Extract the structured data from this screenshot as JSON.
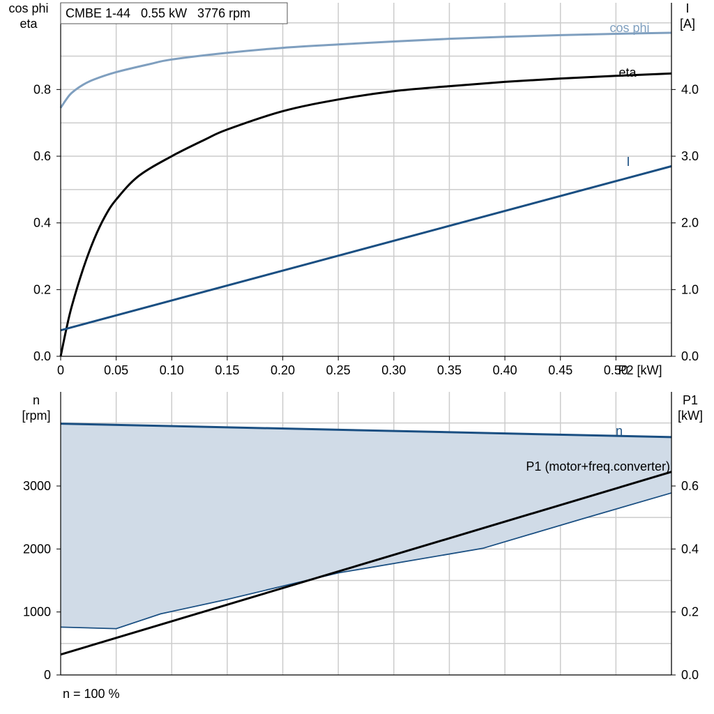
{
  "chart_data": [
    {
      "type": "line",
      "title": "CMBE 1-44   0.55 kW   3776 rpm",
      "xlabel": "P2 [kW]",
      "ylabel_left": [
        "cos phi",
        "eta"
      ],
      "ylabel_right": [
        "I",
        "[A]"
      ],
      "xlim": [
        0,
        0.55
      ],
      "ylim_left": [
        0,
        1.06
      ],
      "ylim_right": [
        0,
        5.3
      ],
      "x_ticks": [
        "0",
        "0.05",
        "0.10",
        "0.15",
        "0.20",
        "0.25",
        "0.30",
        "0.35",
        "0.40",
        "0.45",
        "0.50"
      ],
      "y_ticks_left": [
        "0.0",
        "0.2",
        "0.4",
        "0.6",
        "0.8"
      ],
      "y_ticks_right": [
        "0.0",
        "1.0",
        "2.0",
        "3.0",
        "4.0"
      ],
      "grid": true,
      "series": [
        {
          "name": "cos phi",
          "axis": "left",
          "color": "#7f9fbf",
          "x": [
            0,
            0.005,
            0.01,
            0.02,
            0.03,
            0.05,
            0.08,
            0.1,
            0.15,
            0.2,
            0.25,
            0.3,
            0.35,
            0.4,
            0.45,
            0.5,
            0.55
          ],
          "y": [
            0.745,
            0.77,
            0.79,
            0.814,
            0.83,
            0.852,
            0.876,
            0.89,
            0.91,
            0.925,
            0.935,
            0.944,
            0.952,
            0.958,
            0.963,
            0.967,
            0.97
          ]
        },
        {
          "name": "eta",
          "axis": "left",
          "color": "#000000",
          "x": [
            0,
            0.005,
            0.01,
            0.02,
            0.03,
            0.04,
            0.05,
            0.07,
            0.1,
            0.13,
            0.15,
            0.2,
            0.25,
            0.3,
            0.35,
            0.4,
            0.45,
            0.5,
            0.55
          ],
          "y": [
            0,
            0.08,
            0.15,
            0.26,
            0.35,
            0.42,
            0.47,
            0.54,
            0.6,
            0.65,
            0.68,
            0.735,
            0.77,
            0.795,
            0.81,
            0.823,
            0.833,
            0.841,
            0.848
          ]
        },
        {
          "name": "I",
          "axis": "right",
          "color": "#1a4f82",
          "x": [
            0,
            0.55
          ],
          "y": [
            0.39,
            2.85
          ]
        }
      ]
    },
    {
      "type": "area",
      "ylabel_left": [
        "n",
        "[rpm]"
      ],
      "ylabel_right": [
        "P1",
        "[kW]"
      ],
      "xlim": [
        0,
        0.55
      ],
      "ylim_left": [
        0,
        4000
      ],
      "ylim_right": [
        0,
        0.8
      ],
      "y_ticks_left": [
        "0",
        "1000",
        "2000",
        "3000"
      ],
      "y_ticks_right": [
        "0.0",
        "0.2",
        "0.4",
        "0.6"
      ],
      "grid": true,
      "series": [
        {
          "name": "n",
          "axis": "left",
          "color": "#1a4f82",
          "x": [
            0,
            0.55
          ],
          "y": [
            3990,
            3776
          ]
        },
        {
          "name": "range_lower",
          "axis": "left",
          "color": "#1a4f82",
          "x": [
            0,
            0.05,
            0.09,
            0.15,
            0.25,
            0.38,
            0.47,
            0.55
          ],
          "y": [
            760,
            735,
            970,
            1200,
            1620,
            2010,
            2480,
            2890
          ]
        },
        {
          "name": "P1 (motor+freq.converter)",
          "axis": "right",
          "color": "#000000",
          "x": [
            0,
            0.55
          ],
          "y": [
            0.065,
            0.645
          ]
        }
      ],
      "fill_color": "#d0dbe7",
      "annotation": "n = 100 %"
    }
  ]
}
